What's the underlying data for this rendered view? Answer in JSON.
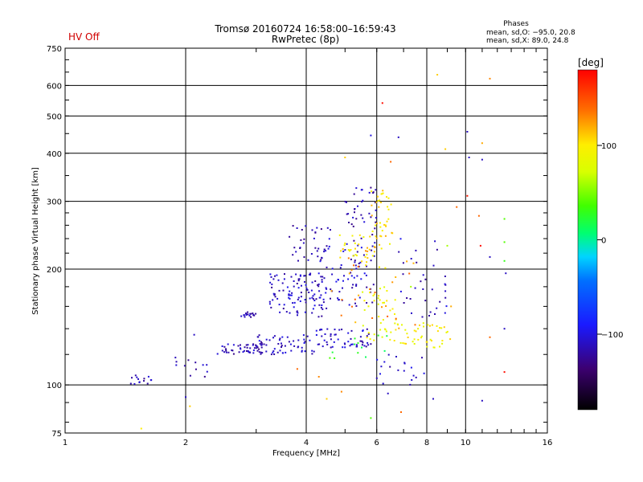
{
  "header": {
    "hv_status": "HV Off",
    "title_line1": "Tromsø 20160724 16:58:00–16:59:43",
    "title_line2": "RwPretec (8p)",
    "stats_title": "Phases",
    "stats_line1": "mean, sd,O: −95.0, 20.8",
    "stats_line2": "mean, sd,X:  89.0, 24.8"
  },
  "colorbar": {
    "label": "[deg]",
    "min": -180,
    "max": 180,
    "ticks": [
      {
        "value": 100,
        "label": "100"
      },
      {
        "value": 0,
        "label": "0"
      },
      {
        "value": -100,
        "label": "−100"
      }
    ]
  },
  "chart_data": {
    "type": "scatter",
    "title": "Tromsø 20160724 16:58:00–16:59:43",
    "subtitle": "RwPretec (8p)",
    "xlabel": "Frequency [MHz]",
    "ylabel": "Stationary phase Virtual Height [km]",
    "xscale": "log",
    "yscale": "log",
    "xlim": [
      1,
      16
    ],
    "ylim": [
      75,
      750
    ],
    "grid": true,
    "xticks": [
      1,
      2,
      4,
      6,
      8,
      10,
      16
    ],
    "yticks": [
      75,
      100,
      200,
      300,
      400,
      500,
      600,
      750
    ],
    "color_variable": "phase [deg]",
    "clusters": [
      {
        "x": [
          1.45,
          1.65
        ],
        "y": [
          100,
          106
        ],
        "phase": -115,
        "n": 14
      },
      {
        "x": [
          1.85,
          2.3
        ],
        "y": [
          105,
          118
        ],
        "phase": -115,
        "n": 12
      },
      {
        "x": [
          2.4,
          3.1
        ],
        "y": [
          120,
          128
        ],
        "phase": -115,
        "n": 45
      },
      {
        "x": [
          2.75,
          3.05
        ],
        "y": [
          150,
          155
        ],
        "phase": -115,
        "n": 18
      },
      {
        "x": [
          3.0,
          4.2
        ],
        "y": [
          120,
          135
        ],
        "phase": -110,
        "n": 60
      },
      {
        "x": [
          3.2,
          4.5
        ],
        "y": [
          150,
          195
        ],
        "phase": -110,
        "n": 110
      },
      {
        "x": [
          3.6,
          4.6
        ],
        "y": [
          210,
          260
        ],
        "phase": -115,
        "n": 35
      },
      {
        "x": [
          4.2,
          5.8
        ],
        "y": [
          125,
          140
        ],
        "phase": -110,
        "n": 55
      },
      {
        "x": [
          4.3,
          6.0
        ],
        "y": [
          160,
          230
        ],
        "phase": -110,
        "n": 70
      },
      {
        "x": [
          5.0,
          6.0
        ],
        "y": [
          230,
          330
        ],
        "phase": -115,
        "n": 40
      },
      {
        "x": [
          4.8,
          6.6
        ],
        "y": [
          200,
          245
        ],
        "phase": 100,
        "n": 35
      },
      {
        "x": [
          5.8,
          6.6
        ],
        "y": [
          240,
          320
        ],
        "phase": 105,
        "n": 35
      },
      {
        "x": [
          5.5,
          6.8
        ],
        "y": [
          130,
          180
        ],
        "phase": 90,
        "n": 40
      },
      {
        "x": [
          6.5,
          9.2
        ],
        "y": [
          125,
          145
        ],
        "phase": 95,
        "n": 45
      },
      {
        "x": [
          4.5,
          7.5
        ],
        "y": [
          140,
          230
        ],
        "phase": 130,
        "n": 30
      },
      {
        "x": [
          4.5,
          6.5
        ],
        "y": [
          115,
          135
        ],
        "phase": 25,
        "n": 12
      },
      {
        "x": [
          6.8,
          9.0
        ],
        "y": [
          150,
          240
        ],
        "phase": -110,
        "n": 35
      },
      {
        "x": [
          5.8,
          8.0
        ],
        "y": [
          100,
          120
        ],
        "phase": -110,
        "n": 20
      }
    ],
    "outliers": [
      {
        "x": 1.55,
        "y": 77,
        "phase": 100
      },
      {
        "x": 2.0,
        "y": 93,
        "phase": -110
      },
      {
        "x": 2.05,
        "y": 88,
        "phase": 110
      },
      {
        "x": 2.1,
        "y": 135,
        "phase": -110
      },
      {
        "x": 6.2,
        "y": 540,
        "phase": 175
      },
      {
        "x": 8.5,
        "y": 640,
        "phase": 110
      },
      {
        "x": 11.5,
        "y": 625,
        "phase": 130
      },
      {
        "x": 10.1,
        "y": 455,
        "phase": -110
      },
      {
        "x": 5.8,
        "y": 445,
        "phase": -100
      },
      {
        "x": 6.8,
        "y": 440,
        "phase": -110
      },
      {
        "x": 8.9,
        "y": 410,
        "phase": 110
      },
      {
        "x": 10.2,
        "y": 390,
        "phase": -110
      },
      {
        "x": 11.0,
        "y": 385,
        "phase": -110
      },
      {
        "x": 11.0,
        "y": 425,
        "phase": 120
      },
      {
        "x": 10.1,
        "y": 310,
        "phase": 170
      },
      {
        "x": 10.8,
        "y": 275,
        "phase": 140
      },
      {
        "x": 10.9,
        "y": 230,
        "phase": 175
      },
      {
        "x": 11.5,
        "y": 215,
        "phase": -110
      },
      {
        "x": 12.5,
        "y": 270,
        "phase": 40
      },
      {
        "x": 12.5,
        "y": 235,
        "phase": 40
      },
      {
        "x": 12.5,
        "y": 210,
        "phase": 30
      },
      {
        "x": 12.6,
        "y": 195,
        "phase": -110
      },
      {
        "x": 11.5,
        "y": 133,
        "phase": 140
      },
      {
        "x": 12.5,
        "y": 140,
        "phase": -110
      },
      {
        "x": 12.5,
        "y": 108,
        "phase": 175
      },
      {
        "x": 11.0,
        "y": 91,
        "phase": -110
      },
      {
        "x": 9.0,
        "y": 230,
        "phase": 60
      },
      {
        "x": 9.5,
        "y": 290,
        "phase": 140
      },
      {
        "x": 5.8,
        "y": 82,
        "phase": 40
      },
      {
        "x": 6.4,
        "y": 95,
        "phase": -110
      },
      {
        "x": 6.9,
        "y": 85,
        "phase": 140
      },
      {
        "x": 8.3,
        "y": 92,
        "phase": -110
      },
      {
        "x": 4.5,
        "y": 92,
        "phase": 110
      },
      {
        "x": 4.9,
        "y": 96,
        "phase": 130
      },
      {
        "x": 4.3,
        "y": 105,
        "phase": 130
      },
      {
        "x": 3.8,
        "y": 110,
        "phase": 140
      },
      {
        "x": 7.3,
        "y": 180,
        "phase": 60
      },
      {
        "x": 9.2,
        "y": 160,
        "phase": 120
      },
      {
        "x": 5.0,
        "y": 390,
        "phase": 110
      },
      {
        "x": 6.5,
        "y": 380,
        "phase": 140
      }
    ]
  }
}
